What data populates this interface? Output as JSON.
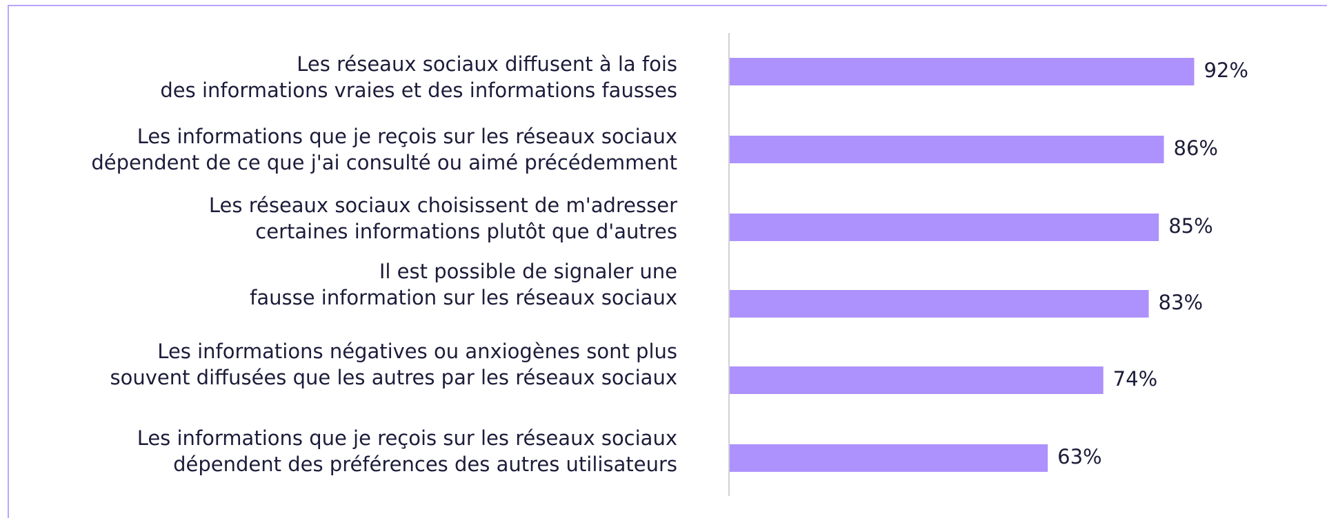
{
  "chart_data": {
    "type": "bar",
    "orientation": "horizontal",
    "categories": [
      [
        "Les réseaux sociaux diffusent à la fois",
        "des informations vraies et des informations fausses"
      ],
      [
        "Les informations que je reçois sur les réseaux sociaux",
        "dépendent de ce que j'ai consulté ou aimé précédemment"
      ],
      [
        "Les réseaux sociaux choisissent de m'adresser",
        "certaines informations plutôt que d'autres"
      ],
      [
        "Il est possible de signaler une",
        "fausse information sur les réseaux sociaux"
      ],
      [
        "Les informations négatives ou anxiogènes sont plus",
        "souvent diffusées que les autres par les réseaux sociaux"
      ],
      [
        "Les informations que je reçois sur les réseaux sociaux",
        "dépendent des préférences des autres utilisateurs"
      ]
    ],
    "values": [
      92,
      86,
      85,
      83,
      74,
      63
    ],
    "value_labels": [
      "92%",
      "86%",
      "85%",
      "83%",
      "74%",
      "63%"
    ],
    "color": "#ad91fc"
  }
}
